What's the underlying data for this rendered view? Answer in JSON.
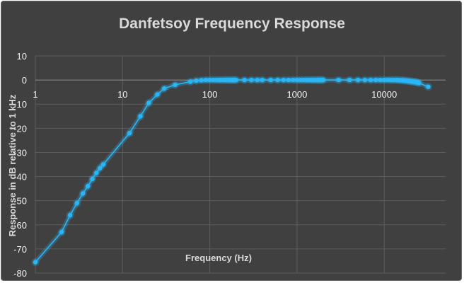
{
  "chart_data": {
    "type": "scatter",
    "title": "Danfetsoy Frequency Response",
    "xlabel": "Frequency (Hz)",
    "ylabel": "Response in dB relative to 1 kHz",
    "x_scale": "log",
    "xlim": [
      1,
      40000
    ],
    "ylim": [
      -80,
      10
    ],
    "x_tick_labels": [
      "1",
      "10",
      "100",
      "1000",
      "10000"
    ],
    "x_tick_values": [
      1,
      10,
      100,
      1000,
      10000
    ],
    "y_tick_labels": [
      "10",
      "0",
      "-10",
      "-20",
      "-30",
      "-40",
      "-50",
      "-60",
      "-70",
      "-80"
    ],
    "y_tick_values": [
      10,
      0,
      -10,
      -20,
      -30,
      -40,
      -50,
      -60,
      -70,
      -80
    ],
    "grid": true,
    "series_color": "#29b6f6",
    "series": [
      {
        "name": "",
        "points": [
          [
            1,
            -75.5
          ],
          [
            2,
            -63
          ],
          [
            2.5,
            -56
          ],
          [
            3,
            -51
          ],
          [
            3.5,
            -47
          ],
          [
            4,
            -44
          ],
          [
            4.5,
            -41
          ],
          [
            5,
            -38.5
          ],
          [
            5.5,
            -36.5
          ],
          [
            6,
            -35
          ],
          [
            12,
            -22
          ],
          [
            16,
            -15
          ],
          [
            20,
            -9.5
          ],
          [
            25,
            -6
          ],
          [
            30,
            -3.5
          ],
          [
            40,
            -2
          ],
          [
            60,
            -0.7
          ],
          [
            70,
            -0.3
          ],
          [
            80,
            -0.1
          ],
          [
            90,
            0
          ],
          [
            100,
            0
          ],
          [
            110,
            0
          ],
          [
            120,
            0
          ],
          [
            130,
            0
          ],
          [
            140,
            0
          ],
          [
            150,
            0
          ],
          [
            160,
            0
          ],
          [
            170,
            0
          ],
          [
            180,
            0
          ],
          [
            190,
            0
          ],
          [
            200,
            0
          ],
          [
            250,
            0
          ],
          [
            300,
            0
          ],
          [
            350,
            0
          ],
          [
            400,
            0
          ],
          [
            500,
            0
          ],
          [
            600,
            0
          ],
          [
            700,
            0
          ],
          [
            800,
            0
          ],
          [
            900,
            0
          ],
          [
            1000,
            0
          ],
          [
            1100,
            0
          ],
          [
            1200,
            0
          ],
          [
            1300,
            0
          ],
          [
            1400,
            0
          ],
          [
            1500,
            0
          ],
          [
            1600,
            0
          ],
          [
            1700,
            0
          ],
          [
            1800,
            0
          ],
          [
            1900,
            0
          ],
          [
            2000,
            0
          ],
          [
            3000,
            0
          ],
          [
            4000,
            0
          ],
          [
            5000,
            0
          ],
          [
            6000,
            0
          ],
          [
            7000,
            0
          ],
          [
            8000,
            0
          ],
          [
            9000,
            0
          ],
          [
            10000,
            0
          ],
          [
            11000,
            0
          ],
          [
            12000,
            0
          ],
          [
            13000,
            0
          ],
          [
            14000,
            0
          ],
          [
            15000,
            -0.1
          ],
          [
            16000,
            -0.1
          ],
          [
            17000,
            -0.2
          ],
          [
            18000,
            -0.3
          ],
          [
            19000,
            -0.4
          ],
          [
            20000,
            -0.5
          ],
          [
            21000,
            -0.6
          ],
          [
            22000,
            -0.7
          ],
          [
            23000,
            -0.8
          ],
          [
            24000,
            -1
          ],
          [
            25000,
            -1.2
          ],
          [
            32000,
            -2.8
          ]
        ]
      }
    ]
  }
}
